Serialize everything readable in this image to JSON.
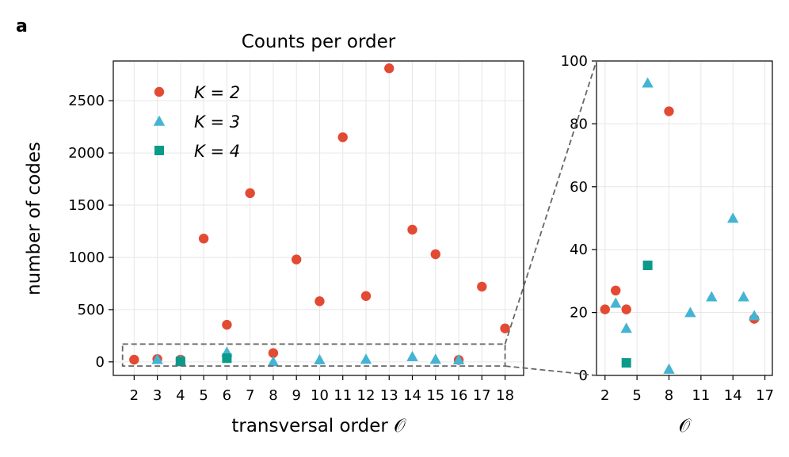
{
  "panel_label": "a",
  "colors": {
    "K2": "#e34a33",
    "K3": "#45b4d3",
    "K4": "#0b9a8a",
    "zoom": "#666666"
  },
  "chart_data": [
    {
      "type": "scatter",
      "title": "Counts per order",
      "xlabel": "transversal order 𝒪",
      "ylabel": "number of codes",
      "x_ticks": [
        2,
        3,
        4,
        5,
        6,
        7,
        8,
        9,
        10,
        11,
        12,
        13,
        14,
        15,
        16,
        17,
        18
      ],
      "y_ticks": [
        0,
        500,
        1000,
        1500,
        2000,
        2500
      ],
      "xlim": [
        1.1,
        18.8
      ],
      "ylim": [
        -130,
        2880
      ],
      "grid": true,
      "legend_position": "upper-left",
      "series": [
        {
          "name": "K = 2",
          "marker": "circle",
          "x": [
            2,
            3,
            4,
            5,
            6,
            7,
            8,
            9,
            10,
            11,
            12,
            13,
            14,
            15,
            16,
            17,
            18
          ],
          "y": [
            21,
            27,
            21,
            1180,
            355,
            1615,
            84,
            980,
            580,
            2150,
            630,
            2810,
            1265,
            1030,
            18,
            720,
            320
          ]
        },
        {
          "name": "K = 3",
          "marker": "triangle",
          "x": [
            3,
            4,
            6,
            8,
            10,
            12,
            14,
            15,
            16
          ],
          "y": [
            23,
            15,
            93,
            2,
            20,
            25,
            50,
            25,
            19
          ]
        },
        {
          "name": "K = 4",
          "marker": "square",
          "x": [
            4,
            6
          ],
          "y": [
            4,
            35
          ]
        }
      ]
    },
    {
      "type": "scatter",
      "xlabel": "𝒪",
      "x_ticks": [
        2,
        5,
        8,
        11,
        14,
        17
      ],
      "y_ticks": [
        0,
        20,
        40,
        60,
        80,
        100
      ],
      "xlim": [
        1.2,
        17.7
      ],
      "ylim": [
        0,
        100
      ],
      "grid": true,
      "zoom_of_first_panel_y_range": [
        -40,
        170
      ],
      "series": [
        {
          "marker": "circle",
          "x": [
            2,
            3,
            4,
            8,
            16
          ],
          "y": [
            21,
            27,
            21,
            84,
            18
          ]
        },
        {
          "marker": "triangle",
          "x": [
            3,
            4,
            6,
            8,
            10,
            12,
            14,
            15,
            16
          ],
          "y": [
            23,
            15,
            93,
            2,
            20,
            25,
            50,
            25,
            19
          ]
        },
        {
          "marker": "square",
          "x": [
            4,
            6
          ],
          "y": [
            4,
            35
          ]
        }
      ]
    }
  ]
}
